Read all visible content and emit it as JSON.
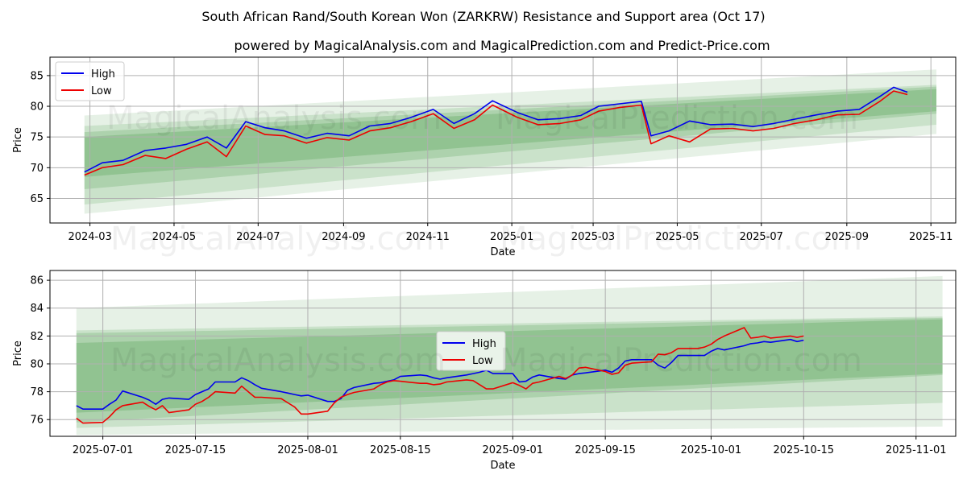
{
  "title": "South African Rand/South Korean Won (ZARKRW) Resistance and Support area (Oct 17)",
  "subtitle": "powered by MagicalAnalysis.com and MagicalPrediction.com and Predict-Price.com",
  "watermark_left": "MagicalAnalysis.com",
  "watermark_right": "MagicalPrediction.com",
  "colors": {
    "high": "#0000ee",
    "low": "#ee0000",
    "band": "#2e8b2e"
  },
  "chart_data": [
    {
      "type": "line",
      "xlabel": "Date",
      "ylabel": "Price",
      "xlim": [
        "2024-02-01",
        "2025-11-19"
      ],
      "ylim": [
        61,
        88
      ],
      "x_ticks": [
        "2024-03-01",
        "2024-05-01",
        "2024-07-01",
        "2024-09-01",
        "2024-11-01",
        "2025-01-01",
        "2025-03-01",
        "2025-05-01",
        "2025-07-01",
        "2025-09-01",
        "2025-11-01"
      ],
      "x_tick_labels": [
        "2024-03",
        "2024-05",
        "2024-07",
        "2024-09",
        "2024-11",
        "2025-01",
        "2025-03",
        "2025-05",
        "2025-07",
        "2025-09",
        "2025-11"
      ],
      "y_ticks": [
        65,
        70,
        75,
        80,
        85
      ],
      "legend": [
        "High",
        "Low"
      ],
      "legend_position": "top-left",
      "bands": [
        {
          "start": "2024-02-26",
          "end": "2025-11-05",
          "lower": [
            62.5,
            75.5
          ],
          "upper": [
            78.5,
            86.0
          ],
          "opacity": 0.12
        },
        {
          "start": "2024-02-26",
          "end": "2025-11-05",
          "lower": [
            64.0,
            77.0
          ],
          "upper": [
            76.8,
            83.5
          ],
          "opacity": 0.15
        },
        {
          "start": "2024-02-26",
          "end": "2025-11-05",
          "lower": [
            66.5,
            78.8
          ],
          "upper": [
            75.8,
            83.2
          ],
          "opacity": 0.18
        },
        {
          "start": "2024-02-26",
          "end": "2025-11-05",
          "lower": [
            68.5,
            79.2
          ],
          "upper": [
            75.0,
            82.8
          ],
          "opacity": 0.22
        }
      ],
      "series": [
        {
          "name": "High",
          "x": [
            "2024-02-26",
            "2024-03-10",
            "2024-03-25",
            "2024-04-10",
            "2024-04-25",
            "2024-05-10",
            "2024-05-25",
            "2024-06-08",
            "2024-06-22",
            "2024-07-06",
            "2024-07-20",
            "2024-08-05",
            "2024-08-20",
            "2024-09-05",
            "2024-09-20",
            "2024-10-05",
            "2024-10-20",
            "2024-11-05",
            "2024-11-20",
            "2024-12-05",
            "2024-12-18",
            "2025-01-05",
            "2025-01-20",
            "2025-02-05",
            "2025-02-20",
            "2025-03-05",
            "2025-03-20",
            "2025-04-05",
            "2025-04-12",
            "2025-04-25",
            "2025-05-10",
            "2025-05-25",
            "2025-06-10",
            "2025-06-25",
            "2025-07-10",
            "2025-07-25",
            "2025-08-10",
            "2025-08-25",
            "2025-09-10",
            "2025-09-25",
            "2025-10-05",
            "2025-10-15"
          ],
          "values": [
            69.3,
            70.8,
            71.2,
            72.8,
            73.2,
            73.8,
            75.0,
            73.2,
            77.5,
            76.5,
            76.0,
            74.8,
            75.6,
            75.2,
            76.8,
            77.2,
            78.2,
            79.5,
            77.2,
            78.8,
            80.9,
            79.0,
            77.8,
            78.0,
            78.5,
            80.0,
            80.4,
            80.8,
            75.2,
            76.0,
            77.6,
            77.0,
            77.1,
            76.7,
            77.2,
            77.9,
            78.6,
            79.2,
            79.5,
            81.6,
            83.1,
            82.3
          ]
        },
        {
          "name": "Low",
          "x": [
            "2024-02-26",
            "2024-03-10",
            "2024-03-25",
            "2024-04-10",
            "2024-04-25",
            "2024-05-10",
            "2024-05-25",
            "2024-06-08",
            "2024-06-22",
            "2024-07-06",
            "2024-07-20",
            "2024-08-05",
            "2024-08-20",
            "2024-09-05",
            "2024-09-20",
            "2024-10-05",
            "2024-10-20",
            "2024-11-05",
            "2024-11-20",
            "2024-12-05",
            "2024-12-18",
            "2025-01-05",
            "2025-01-20",
            "2025-02-05",
            "2025-02-20",
            "2025-03-05",
            "2025-03-20",
            "2025-04-05",
            "2025-04-12",
            "2025-04-25",
            "2025-05-10",
            "2025-05-25",
            "2025-06-10",
            "2025-06-25",
            "2025-07-10",
            "2025-07-25",
            "2025-08-10",
            "2025-08-25",
            "2025-09-10",
            "2025-09-25",
            "2025-10-05",
            "2025-10-15"
          ],
          "values": [
            68.8,
            70.0,
            70.5,
            72.0,
            71.5,
            73.0,
            74.2,
            71.8,
            76.8,
            75.4,
            75.2,
            74.0,
            74.9,
            74.5,
            76.0,
            76.5,
            77.5,
            78.8,
            76.4,
            77.8,
            80.2,
            78.2,
            77.0,
            77.2,
            77.8,
            79.2,
            79.8,
            80.2,
            73.9,
            75.2,
            74.2,
            76.3,
            76.4,
            76.0,
            76.4,
            77.2,
            77.8,
            78.6,
            78.7,
            80.8,
            82.5,
            81.9
          ]
        }
      ]
    },
    {
      "type": "line",
      "xlabel": "Date",
      "ylabel": "Price",
      "xlim": [
        "2025-06-23",
        "2025-11-07"
      ],
      "ylim": [
        74.8,
        86.7
      ],
      "x_ticks": [
        "2025-07-01",
        "2025-07-15",
        "2025-08-01",
        "2025-08-15",
        "2025-09-01",
        "2025-09-15",
        "2025-10-01",
        "2025-10-15",
        "2025-11-01"
      ],
      "x_tick_labels": [
        "2025-07-01",
        "2025-07-15",
        "2025-08-01",
        "2025-08-15",
        "2025-09-01",
        "2025-09-15",
        "2025-10-01",
        "2025-10-15",
        "2025-11-01"
      ],
      "y_ticks": [
        76,
        78,
        80,
        82,
        84,
        86
      ],
      "legend": [
        "High",
        "Low"
      ],
      "legend_position": "center",
      "bands": [
        {
          "start": "2025-06-27",
          "end": "2025-11-05",
          "lower": [
            74.9,
            75.5
          ],
          "upper": [
            84.0,
            86.3
          ],
          "opacity": 0.12
        },
        {
          "start": "2025-06-27",
          "end": "2025-11-05",
          "lower": [
            75.4,
            77.2
          ],
          "upper": [
            82.4,
            83.4
          ],
          "opacity": 0.15
        },
        {
          "start": "2025-06-27",
          "end": "2025-11-05",
          "lower": [
            75.8,
            79.2
          ],
          "upper": [
            82.2,
            83.3
          ],
          "opacity": 0.18
        },
        {
          "start": "2025-06-27",
          "end": "2025-11-05",
          "lower": [
            76.5,
            79.3
          ],
          "upper": [
            81.5,
            83.2
          ],
          "opacity": 0.22
        }
      ],
      "series": [
        {
          "name": "High",
          "x": [
            "2025-06-27",
            "2025-06-28",
            "2025-07-01",
            "2025-07-02",
            "2025-07-03",
            "2025-07-04",
            "2025-07-07",
            "2025-07-08",
            "2025-07-09",
            "2025-07-10",
            "2025-07-11",
            "2025-07-14",
            "2025-07-15",
            "2025-07-16",
            "2025-07-17",
            "2025-07-18",
            "2025-07-21",
            "2025-07-22",
            "2025-07-23",
            "2025-07-24",
            "2025-07-25",
            "2025-07-28",
            "2025-07-29",
            "2025-07-30",
            "2025-07-31",
            "2025-08-01",
            "2025-08-04",
            "2025-08-05",
            "2025-08-06",
            "2025-08-07",
            "2025-08-08",
            "2025-08-11",
            "2025-08-12",
            "2025-08-13",
            "2025-08-14",
            "2025-08-15",
            "2025-08-18",
            "2025-08-19",
            "2025-08-20",
            "2025-08-21",
            "2025-08-22",
            "2025-08-25",
            "2025-08-26",
            "2025-08-27",
            "2025-08-28",
            "2025-08-29",
            "2025-09-01",
            "2025-09-02",
            "2025-09-03",
            "2025-09-04",
            "2025-09-05",
            "2025-09-08",
            "2025-09-09",
            "2025-09-10",
            "2025-09-11",
            "2025-09-12",
            "2025-09-15",
            "2025-09-16",
            "2025-09-17",
            "2025-09-18",
            "2025-09-19",
            "2025-09-22",
            "2025-09-23",
            "2025-09-24",
            "2025-09-25",
            "2025-09-26",
            "2025-09-29",
            "2025-09-30",
            "2025-10-01",
            "2025-10-02",
            "2025-10-03",
            "2025-10-06",
            "2025-10-07",
            "2025-10-08",
            "2025-10-09",
            "2025-10-10",
            "2025-10-13",
            "2025-10-14",
            "2025-10-15"
          ],
          "values": [
            77.0,
            76.75,
            76.75,
            77.1,
            77.4,
            78.05,
            77.6,
            77.4,
            77.1,
            77.45,
            77.55,
            77.45,
            77.8,
            78.0,
            78.2,
            78.7,
            78.7,
            79.0,
            78.8,
            78.5,
            78.25,
            78.0,
            77.9,
            77.8,
            77.7,
            77.75,
            77.3,
            77.3,
            77.5,
            78.1,
            78.3,
            78.6,
            78.65,
            78.75,
            78.85,
            79.1,
            79.2,
            79.15,
            79.0,
            78.9,
            79.0,
            79.2,
            79.3,
            79.4,
            79.55,
            79.3,
            79.3,
            78.7,
            78.75,
            79.05,
            79.2,
            78.95,
            78.9,
            79.2,
            79.3,
            79.35,
            79.55,
            79.4,
            79.7,
            80.2,
            80.3,
            80.3,
            79.9,
            79.7,
            80.1,
            80.6,
            80.6,
            80.6,
            80.9,
            81.1,
            81.0,
            81.3,
            81.45,
            81.5,
            81.6,
            81.55,
            81.75,
            81.6,
            81.7
          ]
        },
        {
          "name": "Low",
          "x": [
            "2025-06-27",
            "2025-06-28",
            "2025-07-01",
            "2025-07-02",
            "2025-07-03",
            "2025-07-04",
            "2025-07-07",
            "2025-07-08",
            "2025-07-09",
            "2025-07-10",
            "2025-07-11",
            "2025-07-14",
            "2025-07-15",
            "2025-07-16",
            "2025-07-17",
            "2025-07-18",
            "2025-07-21",
            "2025-07-22",
            "2025-07-23",
            "2025-07-24",
            "2025-07-25",
            "2025-07-28",
            "2025-07-29",
            "2025-07-30",
            "2025-07-31",
            "2025-08-01",
            "2025-08-04",
            "2025-08-05",
            "2025-08-06",
            "2025-08-07",
            "2025-08-08",
            "2025-08-11",
            "2025-08-12",
            "2025-08-13",
            "2025-08-14",
            "2025-08-15",
            "2025-08-18",
            "2025-08-19",
            "2025-08-20",
            "2025-08-21",
            "2025-08-22",
            "2025-08-25",
            "2025-08-26",
            "2025-08-27",
            "2025-08-28",
            "2025-08-29",
            "2025-09-01",
            "2025-09-02",
            "2025-09-03",
            "2025-09-04",
            "2025-09-05",
            "2025-09-08",
            "2025-09-09",
            "2025-09-10",
            "2025-09-11",
            "2025-09-12",
            "2025-09-15",
            "2025-09-16",
            "2025-09-17",
            "2025-09-18",
            "2025-09-19",
            "2025-09-22",
            "2025-09-23",
            "2025-09-24",
            "2025-09-25",
            "2025-09-26",
            "2025-09-29",
            "2025-09-30",
            "2025-10-01",
            "2025-10-02",
            "2025-10-03",
            "2025-10-06",
            "2025-10-07",
            "2025-10-08",
            "2025-10-09",
            "2025-10-10",
            "2025-10-13",
            "2025-10-14",
            "2025-10-15"
          ],
          "values": [
            76.1,
            75.75,
            75.8,
            76.2,
            76.7,
            77.0,
            77.25,
            76.95,
            76.7,
            77.0,
            76.5,
            76.7,
            77.1,
            77.3,
            77.6,
            78.0,
            77.9,
            78.4,
            78.0,
            77.6,
            77.6,
            77.5,
            77.2,
            76.9,
            76.4,
            76.4,
            76.6,
            77.2,
            77.6,
            77.8,
            77.95,
            78.2,
            78.5,
            78.7,
            78.8,
            78.75,
            78.6,
            78.6,
            78.5,
            78.55,
            78.7,
            78.85,
            78.8,
            78.5,
            78.2,
            78.2,
            78.65,
            78.45,
            78.2,
            78.6,
            78.7,
            79.1,
            78.95,
            79.2,
            79.7,
            79.75,
            79.45,
            79.25,
            79.35,
            79.9,
            80.05,
            80.15,
            80.7,
            80.65,
            80.8,
            81.1,
            81.1,
            81.2,
            81.4,
            81.75,
            82.0,
            82.6,
            81.85,
            81.9,
            82.0,
            81.85,
            82.0,
            81.9,
            82.0
          ]
        }
      ]
    }
  ]
}
